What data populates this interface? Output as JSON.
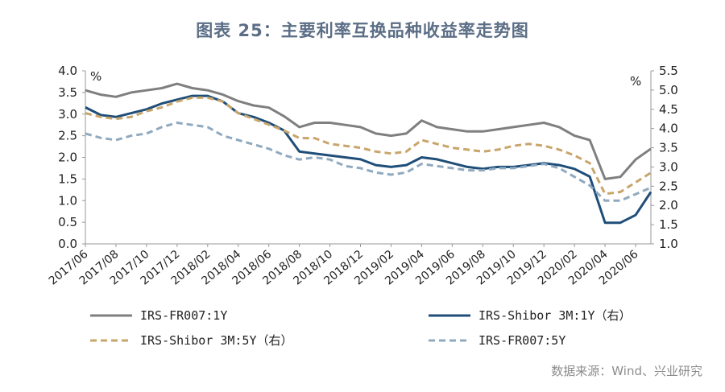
{
  "title": "图表 25：主要利率互换品种收益率走势图",
  "source": "数据来源：Wind、兴业研究",
  "colors": {
    "title": "#5b6e86",
    "irs_fr007_1y": "#7f7f7f",
    "irs_shibor_1y": "#1f4e79",
    "irs_shibor_5y": "#c8a56a",
    "irs_fr007_5y": "#8fa9bf"
  },
  "chart_data": {
    "type": "line",
    "title": "图表 25：主要利率互换品种收益率走势图",
    "left_unit": "%",
    "right_unit": "%",
    "left_ylim": [
      0.0,
      4.0
    ],
    "right_ylim": [
      1.0,
      5.5
    ],
    "left_ticks": [
      "0.0",
      "0.5",
      "1.0",
      "1.5",
      "2.0",
      "2.5",
      "3.0",
      "3.5",
      "4.0"
    ],
    "right_ticks": [
      "1.0",
      "1.5",
      "2.0",
      "2.5",
      "3.0",
      "3.5",
      "4.0",
      "4.5",
      "5.0",
      "5.5"
    ],
    "x_tick_labels": [
      "2017/06",
      "2017/08",
      "2017/10",
      "2017/12",
      "2018/02",
      "2018/04",
      "2018/06",
      "2018/08",
      "2018/10",
      "2018/12",
      "2019/02",
      "2019/04",
      "2019/06",
      "2019/08",
      "2019/10",
      "2019/12",
      "2020/02",
      "2020/04",
      "2020/06"
    ],
    "x_range": [
      "2017/06",
      "2020/07"
    ],
    "grid": false,
    "legend_position": "bottom",
    "series": [
      {
        "name": "IRS-FR007:1Y",
        "axis": "left",
        "style": "solid",
        "key": "irs_fr007_1y",
        "x": [
          "2017/06",
          "2017/07",
          "2017/08",
          "2017/09",
          "2017/10",
          "2017/11",
          "2017/12",
          "2018/01",
          "2018/02",
          "2018/03",
          "2018/04",
          "2018/05",
          "2018/06",
          "2018/07",
          "2018/08",
          "2018/09",
          "2018/10",
          "2018/11",
          "2018/12",
          "2019/01",
          "2019/02",
          "2019/03",
          "2019/04",
          "2019/05",
          "2019/06",
          "2019/07",
          "2019/08",
          "2019/09",
          "2019/10",
          "2019/11",
          "2019/12",
          "2020/01",
          "2020/02",
          "2020/03",
          "2020/04",
          "2020/05",
          "2020/06",
          "2020/07"
        ],
        "values": [
          3.55,
          3.45,
          3.4,
          3.5,
          3.55,
          3.6,
          3.7,
          3.6,
          3.55,
          3.45,
          3.3,
          3.2,
          3.15,
          2.95,
          2.7,
          2.8,
          2.8,
          2.75,
          2.7,
          2.55,
          2.5,
          2.55,
          2.85,
          2.7,
          2.65,
          2.6,
          2.6,
          2.65,
          2.7,
          2.75,
          2.8,
          2.7,
          2.5,
          2.4,
          1.5,
          1.55,
          1.95,
          2.2
        ]
      },
      {
        "name": "IRS-Shibor 3M:1Y（右）",
        "axis": "right",
        "style": "solid",
        "key": "irs_shibor_1y",
        "x": [
          "2017/06",
          "2017/07",
          "2017/08",
          "2017/09",
          "2017/10",
          "2017/11",
          "2017/12",
          "2018/01",
          "2018/02",
          "2018/03",
          "2018/04",
          "2018/05",
          "2018/06",
          "2018/07",
          "2018/08",
          "2018/09",
          "2018/10",
          "2018/11",
          "2018/12",
          "2019/01",
          "2019/02",
          "2019/03",
          "2019/04",
          "2019/05",
          "2019/06",
          "2019/07",
          "2019/08",
          "2019/09",
          "2019/10",
          "2019/11",
          "2019/12",
          "2020/01",
          "2020/02",
          "2020/03",
          "2020/04",
          "2020/05",
          "2020/06",
          "2020/07"
        ],
        "values": [
          4.55,
          4.35,
          4.3,
          4.4,
          4.5,
          4.65,
          4.75,
          4.85,
          4.85,
          4.7,
          4.4,
          4.3,
          4.15,
          3.95,
          3.4,
          3.35,
          3.3,
          3.25,
          3.2,
          3.05,
          3.0,
          3.05,
          3.25,
          3.2,
          3.1,
          3.0,
          2.95,
          3.0,
          3.0,
          3.05,
          3.1,
          3.05,
          2.95,
          2.75,
          1.55,
          1.55,
          1.75,
          2.35
        ]
      },
      {
        "name": "IRS-Shibor 3M:5Y（右）",
        "axis": "right",
        "style": "dashed",
        "key": "irs_shibor_5y",
        "x": [
          "2017/06",
          "2017/07",
          "2017/08",
          "2017/09",
          "2017/10",
          "2017/11",
          "2017/12",
          "2018/01",
          "2018/02",
          "2018/03",
          "2018/04",
          "2018/05",
          "2018/06",
          "2018/07",
          "2018/08",
          "2018/09",
          "2018/10",
          "2018/11",
          "2018/12",
          "2019/01",
          "2019/02",
          "2019/03",
          "2019/04",
          "2019/05",
          "2019/06",
          "2019/07",
          "2019/08",
          "2019/09",
          "2019/10",
          "2019/11",
          "2019/12",
          "2020/01",
          "2020/02",
          "2020/03",
          "2020/04",
          "2020/05",
          "2020/06",
          "2020/07"
        ],
        "values": [
          4.4,
          4.3,
          4.25,
          4.3,
          4.45,
          4.55,
          4.7,
          4.8,
          4.8,
          4.7,
          4.4,
          4.25,
          4.1,
          3.95,
          3.75,
          3.75,
          3.6,
          3.55,
          3.5,
          3.4,
          3.35,
          3.4,
          3.7,
          3.6,
          3.5,
          3.45,
          3.4,
          3.45,
          3.55,
          3.6,
          3.55,
          3.45,
          3.3,
          3.1,
          2.3,
          2.35,
          2.6,
          2.85
        ]
      },
      {
        "name": "IRS-FR007:5Y",
        "axis": "left",
        "style": "dashed",
        "key": "irs_fr007_5y",
        "x": [
          "2017/06",
          "2017/07",
          "2017/08",
          "2017/09",
          "2017/10",
          "2017/11",
          "2017/12",
          "2018/01",
          "2018/02",
          "2018/03",
          "2018/04",
          "2018/05",
          "2018/06",
          "2018/07",
          "2018/08",
          "2018/09",
          "2018/10",
          "2018/11",
          "2018/12",
          "2019/01",
          "2019/02",
          "2019/03",
          "2019/04",
          "2019/05",
          "2019/06",
          "2019/07",
          "2019/08",
          "2019/09",
          "2019/10",
          "2019/11",
          "2019/12",
          "2020/01",
          "2020/02",
          "2020/03",
          "2020/04",
          "2020/05",
          "2020/06",
          "2020/07"
        ],
        "values": [
          2.55,
          2.45,
          2.4,
          2.5,
          2.55,
          2.7,
          2.8,
          2.75,
          2.7,
          2.5,
          2.4,
          2.3,
          2.2,
          2.05,
          1.95,
          2.0,
          1.95,
          1.8,
          1.75,
          1.65,
          1.6,
          1.65,
          1.85,
          1.8,
          1.75,
          1.7,
          1.7,
          1.75,
          1.75,
          1.8,
          1.85,
          1.75,
          1.55,
          1.35,
          1.0,
          1.0,
          1.15,
          1.3
        ]
      }
    ]
  },
  "legend": [
    {
      "label": "IRS-FR007:1Y",
      "key": "irs_fr007_1y",
      "style": "solid"
    },
    {
      "label": "IRS-Shibor 3M:1Y（右）",
      "key": "irs_shibor_1y",
      "style": "solid"
    },
    {
      "label": "IRS-Shibor 3M:5Y（右）",
      "key": "irs_shibor_5y",
      "style": "dashed"
    },
    {
      "label": "IRS-FR007:5Y",
      "key": "irs_fr007_5y",
      "style": "dashed"
    }
  ]
}
